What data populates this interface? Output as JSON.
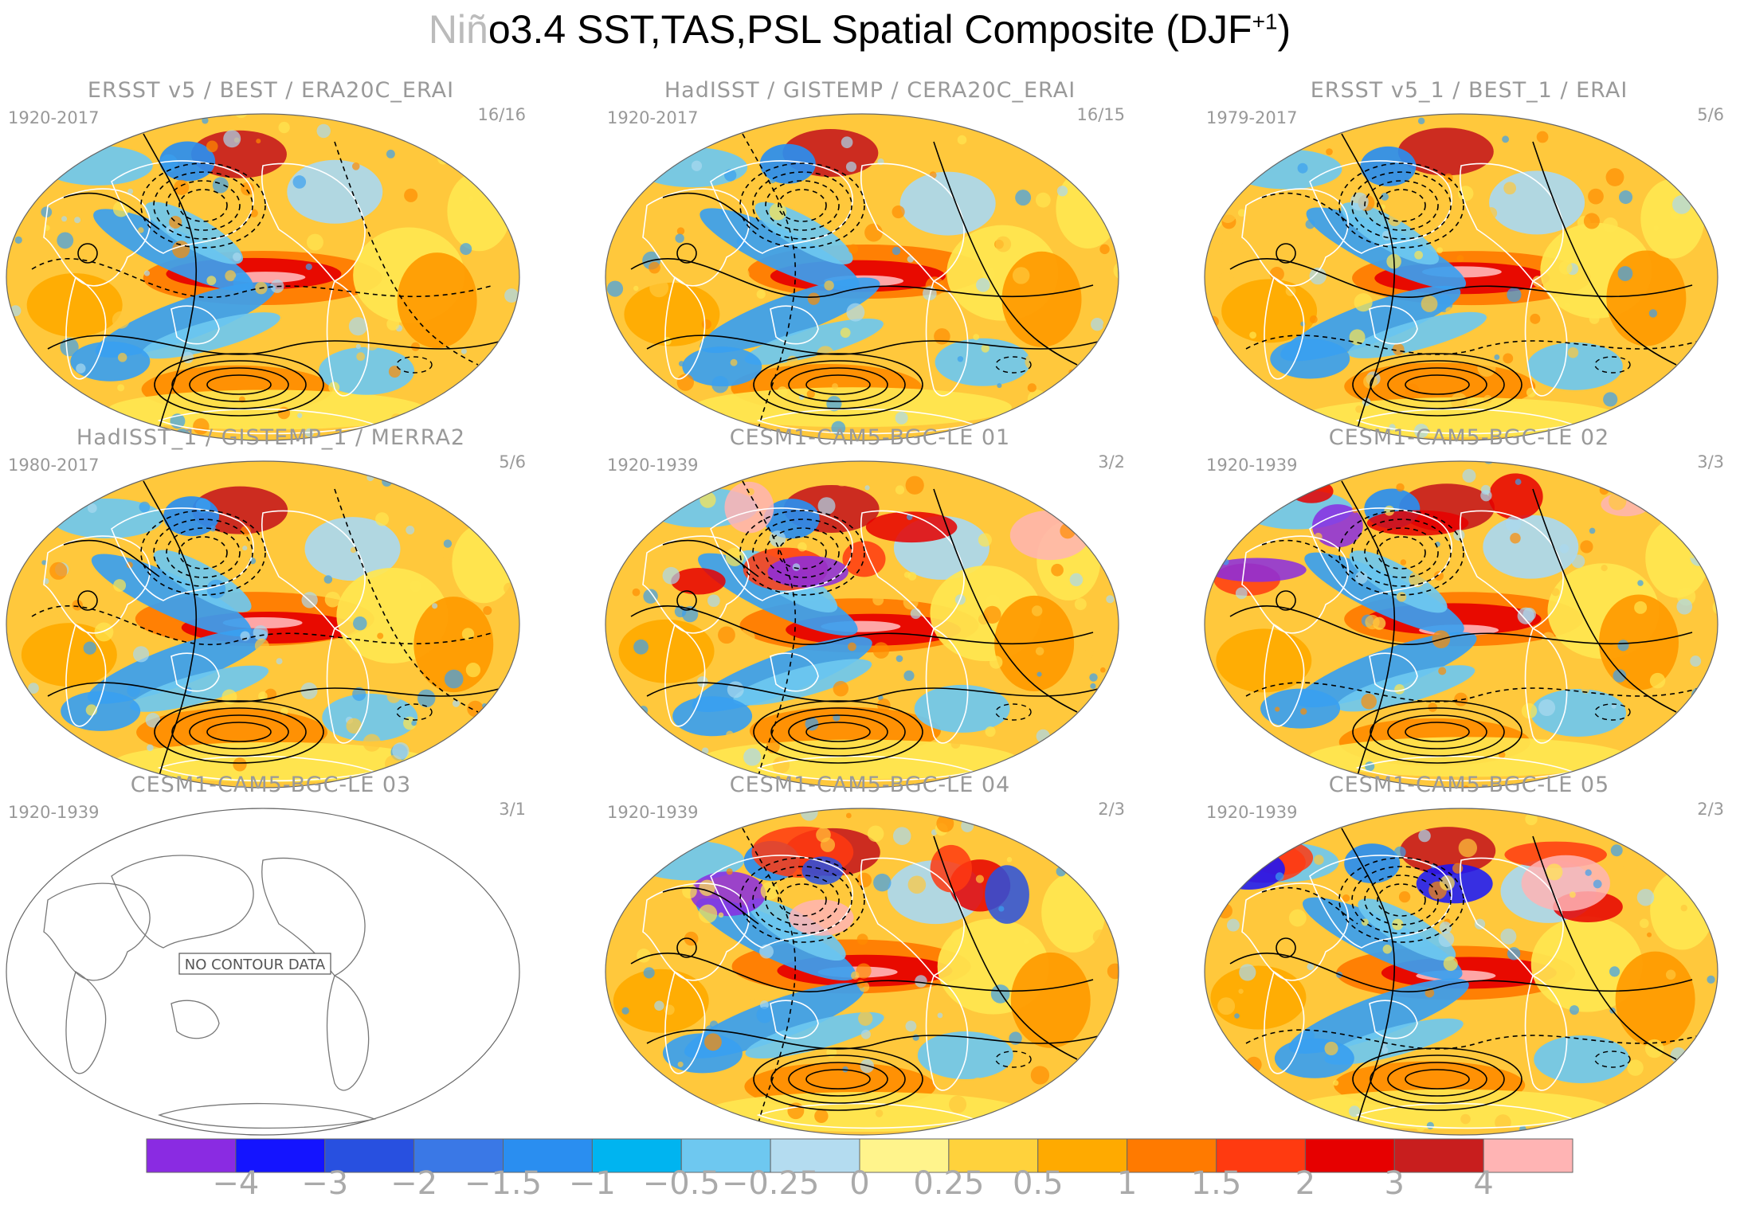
{
  "title": {
    "prefix": "Niñ",
    "main": "o3.4 SST,TAS,PSL Spatial Composite (DJF",
    "sup": "+1",
    "suffix": ")"
  },
  "panels": [
    {
      "title": "ERSST v5 / BEST / ERA20C_ERAI",
      "years": "1920-2017",
      "ratio": "16/16",
      "has_data": true
    },
    {
      "title": "HadISST / GISTEMP / CERA20C_ERAI",
      "years": "1920-2017",
      "ratio": "16/15",
      "has_data": true
    },
    {
      "title": "ERSST v5_1 / BEST_1 / ERAI",
      "years": "1979-2017",
      "ratio": "5/6",
      "has_data": true
    },
    {
      "title": "HadISST_1 / GISTEMP_1 / MERRA2",
      "years": "1980-2017",
      "ratio": "5/6",
      "has_data": true
    },
    {
      "title": "CESM1-CAM5-BGC-LE 01",
      "years": "1920-1939",
      "ratio": "3/2",
      "has_data": true
    },
    {
      "title": "CESM1-CAM5-BGC-LE 02",
      "years": "1920-1939",
      "ratio": "3/3",
      "has_data": true
    },
    {
      "title": "CESM1-CAM5-BGC-LE 03",
      "years": "1920-1939",
      "ratio": "3/1",
      "has_data": false,
      "message": "NO CONTOUR DATA"
    },
    {
      "title": "CESM1-CAM5-BGC-LE 04",
      "years": "1920-1939",
      "ratio": "2/3",
      "has_data": true
    },
    {
      "title": "CESM1-CAM5-BGC-LE 05",
      "years": "1920-1939",
      "ratio": "2/3",
      "has_data": true
    }
  ],
  "colorbar": {
    "colors": [
      "#8a2be2",
      "#1414ff",
      "#2850e0",
      "#3a78e6",
      "#2a8ef0",
      "#00b4f0",
      "#6ec8f0",
      "#b4dcf0",
      "#fff48c",
      "#ffd23c",
      "#ffaa00",
      "#ff7a00",
      "#ff3a10",
      "#e60000",
      "#c81e1e",
      "#ffb4b4"
    ],
    "labels": [
      "−4",
      "−3",
      "−2",
      "−1.5",
      "−1",
      "−0.5",
      "−0.25",
      "0",
      "0.25",
      "0.5",
      "1",
      "1.5",
      "2",
      "3",
      "4"
    ]
  },
  "legend_colors": {
    "ocean_warm_core": "#dc1e1e",
    "ocean_warm": "#ff8c00",
    "neutral_warm": "#ffe650",
    "neutral_cool": "#aad8f0",
    "cool": "#3aa0f0",
    "land_line": "#ffffff"
  }
}
